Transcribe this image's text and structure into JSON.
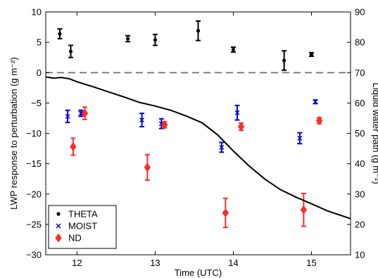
{
  "chart_data": {
    "type": "scatter",
    "xlabel": "Time (UTC)",
    "ylabel": "LWP response to perturbation  (g m⁻²)",
    "y2label": "Liquid water path (g m⁻²)",
    "xlim": [
      11.6,
      15.5
    ],
    "ylim": [
      -30,
      10
    ],
    "y2lim": [
      10,
      90
    ],
    "xticks": [
      12,
      13,
      14,
      15
    ],
    "yticks": [
      -30,
      -25,
      -20,
      -15,
      -10,
      -5,
      0,
      5,
      10
    ],
    "y2ticks": [
      10,
      20,
      30,
      40,
      50,
      60,
      70,
      80,
      90
    ],
    "grid": false,
    "legend_position": "bottom-left",
    "reference_line": {
      "y": 0,
      "style": "dashed",
      "color": "#808080"
    },
    "series": [
      {
        "name": "THETA",
        "marker": "dot",
        "color": "#000000",
        "axis": "left",
        "x": [
          11.78,
          11.92,
          12.65,
          13.0,
          13.55,
          14.0,
          14.65,
          15.0
        ],
        "y": [
          6.4,
          3.5,
          5.6,
          5.4,
          6.9,
          3.8,
          2.0,
          3.0
        ],
        "err": [
          0.8,
          1.0,
          0.5,
          0.9,
          1.6,
          0.4,
          1.6,
          0.3
        ]
      },
      {
        "name": "MOIST",
        "marker": "x",
        "color": "#0000cc",
        "axis": "left",
        "x": [
          11.88,
          12.05,
          12.83,
          13.08,
          13.85,
          14.05,
          14.85,
          15.05
        ],
        "y": [
          -7.2,
          -6.7,
          -7.8,
          -8.4,
          -12.3,
          -6.6,
          -10.8,
          -4.8
        ],
        "err": [
          1.0,
          0.5,
          1.1,
          0.8,
          0.8,
          1.2,
          0.9,
          0.3
        ]
      },
      {
        "name": "ND",
        "marker": "diamond",
        "color": "#ff2a2a",
        "axis": "left",
        "x": [
          11.95,
          12.1,
          12.9,
          13.12,
          13.9,
          14.1,
          14.9,
          15.1
        ],
        "y": [
          -12.2,
          -6.7,
          -15.6,
          -8.6,
          -23.1,
          -8.9,
          -22.6,
          -7.9
        ],
        "err": [
          1.4,
          1.0,
          2.1,
          0.5,
          2.4,
          0.6,
          2.7,
          0.5
        ]
      },
      {
        "name": "",
        "type": "line",
        "color": "#000000",
        "axis": "right",
        "x": [
          11.6,
          11.7,
          11.8,
          11.9,
          12.0,
          12.2,
          12.4,
          12.6,
          12.8,
          13.0,
          13.2,
          13.4,
          13.6,
          13.8,
          14.0,
          14.2,
          14.4,
          14.6,
          14.8,
          15.0,
          15.2,
          15.5
        ],
        "y": [
          68.6,
          68.2,
          68.4,
          68.0,
          67.0,
          65.4,
          63.7,
          62.0,
          60.2,
          59.0,
          57.6,
          55.7,
          53.5,
          49.5,
          44.2,
          39.3,
          35.0,
          31.5,
          29.0,
          26.8,
          24.5,
          21.9
        ]
      }
    ]
  }
}
